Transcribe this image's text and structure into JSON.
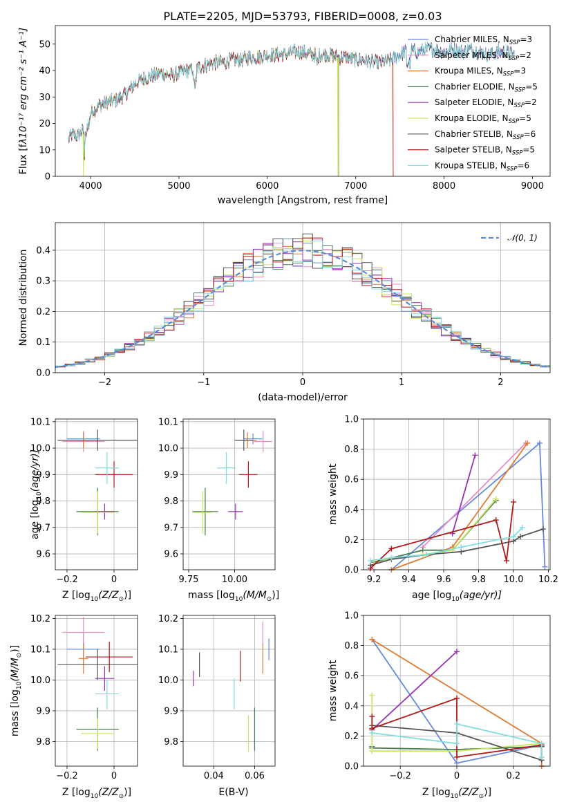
{
  "colors": {
    "Chabrier MILES": "#6688dd",
    "Salpeter MILES": "#e88cc8",
    "Kroupa MILES": "#e07a30",
    "Chabrier ELODIE": "#4a7a52",
    "Salpeter ELODIE": "#9b30b8",
    "Kroupa ELODIE": "#c8e860",
    "Chabrier STELIB": "#555555",
    "Salpeter STELIB": "#b01818",
    "Kroupa STELIB": "#80dde0"
  },
  "chart_data": [
    {
      "type": "line",
      "title": "PLATE=2205, MJD=53793, FIBERID=0008, z=0.03",
      "xlabel": "wavelength [Angstrom, rest frame]",
      "ylabel": "Flux [f",
      "ylabel_math": "λ10⁻¹⁷ erg cm⁻² s⁻¹ A⁻¹]",
      "xlim": [
        3600,
        9200
      ],
      "ylim": [
        0,
        57
      ],
      "xticks": [
        4000,
        5000,
        6000,
        7000,
        8000,
        9000
      ],
      "yticks": [
        0,
        10,
        20,
        30,
        40,
        50
      ],
      "grid": false,
      "legend_position": "upper right",
      "spectrum_envelope": {
        "x": [
          3750,
          3800,
          3850,
          3900,
          3950,
          4000,
          4100,
          4200,
          4300,
          4400,
          4500,
          4600,
          4700,
          4800,
          4900,
          5000,
          5100,
          5200,
          5300,
          5400,
          5500,
          5600,
          5700,
          5800,
          5900,
          6000,
          6100,
          6200,
          6300,
          6400,
          6500,
          6600,
          6700,
          6800,
          6900,
          7000,
          7100,
          7200,
          7300,
          7400,
          7500,
          7600,
          7700,
          7800,
          7900,
          8000,
          8100,
          8200,
          8300,
          8400,
          8500,
          8600,
          8700,
          8800
        ],
        "y": [
          14,
          16,
          15,
          17,
          16,
          24,
          27,
          28,
          29,
          31,
          35,
          37,
          38,
          39,
          38,
          39,
          40,
          41,
          42,
          43,
          43,
          44,
          44,
          45,
          45,
          46,
          46,
          46,
          47,
          47,
          46,
          46,
          46,
          45,
          45,
          44,
          44,
          43,
          43,
          44,
          46,
          48,
          47,
          48,
          48,
          47,
          48,
          47,
          48,
          47,
          46,
          47,
          47,
          46
        ]
      },
      "series": [
        {
          "name": "Chabrier MILES, N",
          "nssp": "=3"
        },
        {
          "name": "Salpeter MILES, N",
          "nssp": "=2"
        },
        {
          "name": "Kroupa MILES, N",
          "nssp": "=3"
        },
        {
          "name": "Chabrier ELODIE, N",
          "nssp": "=5"
        },
        {
          "name": "Salpeter ELODIE, N",
          "nssp": "=2"
        },
        {
          "name": "Kroupa ELODIE, N",
          "nssp": "=5"
        },
        {
          "name": "Chabrier STELIB, N",
          "nssp": "=6"
        },
        {
          "name": "Salpeter STELIB, N",
          "nssp": "=5"
        },
        {
          "name": "Kroupa STELIB, N",
          "nssp": "=6"
        }
      ],
      "nssp_sub": "SSP",
      "dropouts": [
        {
          "x": 3920,
          "series": "Kroupa ELODIE"
        },
        {
          "x": 6800,
          "series": "Kroupa ELODIE"
        },
        {
          "x": 7420,
          "series": "Kroupa MILES"
        }
      ]
    },
    {
      "type": "histogram",
      "xlabel": "(data-model)/error",
      "ylabel": "Normed distribution",
      "xlim": [
        -2.5,
        2.5
      ],
      "ylim": [
        0,
        0.49
      ],
      "xticks": [
        -2,
        -1,
        0,
        1,
        2
      ],
      "yticks": [
        0.0,
        0.1,
        0.2,
        0.3,
        0.4
      ],
      "grid": true,
      "legend": "𝒩(0, 1)",
      "legend_position": "upper right",
      "bin_width": 0.1
    },
    {
      "type": "errorbar",
      "xlabel": "Z [log",
      "xlabel_tail": "(Z/Z",
      "ylabel": "age  [log",
      "ylabel_tail": "(age/yr)]",
      "xlim": [
        -0.25,
        0.1
      ],
      "ylim": [
        9.54,
        10.11
      ],
      "xticks": [
        -0.2,
        0.0
      ],
      "yticks": [
        9.6,
        9.7,
        9.8,
        9.9,
        10.0,
        10.1
      ],
      "grid": true,
      "points": [
        {
          "series": "Chabrier MILES",
          "x": -0.13,
          "y": 10.035,
          "xerr": 0.07,
          "yerr": 0.02
        },
        {
          "series": "Salpeter MILES",
          "x": -0.13,
          "y": 10.025,
          "xerr": 0.09,
          "yerr": 0.04
        },
        {
          "series": "Kroupa MILES",
          "x": -0.13,
          "y": 10.03,
          "xerr": 0.02,
          "yerr": 0.03
        },
        {
          "series": "Chabrier ELODIE",
          "x": -0.07,
          "y": 9.76,
          "xerr": 0.09,
          "yerr": 0.09
        },
        {
          "series": "Salpeter ELODIE",
          "x": -0.04,
          "y": 9.76,
          "xerr": 0.04,
          "yerr": 0.03
        },
        {
          "series": "Kroupa ELODIE",
          "x": -0.07,
          "y": 9.757,
          "xerr": 0.07,
          "yerr": 0.08
        },
        {
          "series": "Chabrier STELIB",
          "x": -0.07,
          "y": 10.03,
          "xerr": 0.17,
          "yerr": 0.04
        },
        {
          "series": "Salpeter STELIB",
          "x": 0.0,
          "y": 9.9,
          "xerr": 0.08,
          "yerr": 0.05
        },
        {
          "series": "Kroupa STELIB",
          "x": -0.03,
          "y": 9.925,
          "xerr": 0.05,
          "yerr": 0.06
        }
      ]
    },
    {
      "type": "errorbar",
      "xlabel": "mass [log",
      "xlabel_tail": "(M/M",
      "ylabel": "",
      "xlim": [
        9.72,
        10.22
      ],
      "ylim": [
        9.54,
        10.11
      ],
      "xticks": [
        9.75,
        10.0
      ],
      "yticks": [
        9.6,
        9.7,
        9.8,
        9.9,
        10.0,
        10.1
      ],
      "grid": true,
      "points": [
        {
          "series": "Chabrier MILES",
          "x": 10.1,
          "y": 10.035,
          "xerr": 0.05,
          "yerr": 0.02
        },
        {
          "series": "Salpeter MILES",
          "x": 10.155,
          "y": 10.025,
          "xerr": 0.05,
          "yerr": 0.04
        },
        {
          "series": "Kroupa MILES",
          "x": 10.07,
          "y": 10.03,
          "xerr": 0.05,
          "yerr": 0.03
        },
        {
          "series": "Chabrier ELODIE",
          "x": 9.84,
          "y": 9.76,
          "xerr": 0.07,
          "yerr": 0.09
        },
        {
          "series": "Salpeter ELODIE",
          "x": 10.005,
          "y": 9.76,
          "xerr": 0.04,
          "yerr": 0.03
        },
        {
          "series": "Kroupa ELODIE",
          "x": 9.826,
          "y": 9.757,
          "xerr": 0.05,
          "yerr": 0.08
        },
        {
          "series": "Chabrier STELIB",
          "x": 10.05,
          "y": 10.03,
          "xerr": 0.05,
          "yerr": 0.04
        },
        {
          "series": "Salpeter STELIB",
          "x": 10.075,
          "y": 9.9,
          "xerr": 0.05,
          "yerr": 0.05
        },
        {
          "series": "Kroupa STELIB",
          "x": 9.955,
          "y": 9.925,
          "xerr": 0.05,
          "yerr": 0.06
        }
      ]
    },
    {
      "type": "line",
      "xlabel": "age  [log",
      "xlabel_tail": "(age/yr)]",
      "ylabel": "mass weight",
      "xlim": [
        9.14,
        10.21
      ],
      "ylim": [
        0,
        1.0
      ],
      "xticks": [
        9.2,
        9.4,
        9.6,
        9.8,
        10.0,
        10.2
      ],
      "yticks": [
        0.0,
        0.2,
        0.4,
        0.6,
        0.8,
        1.0
      ],
      "grid": true,
      "series": [
        {
          "name": "Chabrier MILES",
          "x": [
            9.3,
            10.15,
            10.18
          ],
          "y": [
            0.0,
            0.84,
            0.02
          ]
        },
        {
          "name": "Salpeter MILES",
          "x": [
            9.48,
            10.07
          ],
          "y": [
            0.15,
            0.84
          ]
        },
        {
          "name": "Kroupa MILES",
          "x": [
            9.3,
            9.65,
            10.08
          ],
          "y": [
            0.0,
            0.15,
            0.84
          ]
        },
        {
          "name": "Chabrier ELODIE",
          "x": [
            9.2,
            9.48,
            9.65,
            9.9
          ],
          "y": [
            0.05,
            0.13,
            0.13,
            0.46
          ]
        },
        {
          "name": "Salpeter ELODIE",
          "x": [
            9.65,
            9.78
          ],
          "y": [
            0.24,
            0.76
          ]
        },
        {
          "name": "Kroupa ELODIE",
          "x": [
            9.2,
            9.48,
            9.65,
            9.9
          ],
          "y": [
            0.06,
            0.1,
            0.13,
            0.47
          ]
        },
        {
          "name": "Chabrier STELIB",
          "x": [
            9.18,
            9.3,
            9.5,
            9.7,
            10.0,
            10.04,
            10.17
          ],
          "y": [
            0.03,
            0.07,
            0.1,
            0.12,
            0.19,
            0.22,
            0.27
          ]
        },
        {
          "name": "Salpeter STELIB",
          "x": [
            9.18,
            9.3,
            9.9,
            9.96,
            10.0
          ],
          "y": [
            0.01,
            0.14,
            0.33,
            0.06,
            0.45
          ]
        },
        {
          "name": "Kroupa STELIB",
          "x": [
            9.18,
            9.3,
            9.5,
            9.7,
            10.0,
            10.05
          ],
          "y": [
            0.06,
            0.08,
            0.1,
            0.15,
            0.22,
            0.28
          ]
        }
      ]
    },
    {
      "type": "errorbar",
      "xlabel": "Z [log",
      "xlabel_tail": "(Z/Z",
      "ylabel": "mass [log",
      "ylabel_tail": "(M/M",
      "xlim": [
        -0.25,
        0.1
      ],
      "ylim": [
        9.72,
        10.21
      ],
      "xticks": [
        -0.2,
        0.0
      ],
      "yticks": [
        9.8,
        9.9,
        10.0,
        10.1,
        10.2
      ],
      "grid": true,
      "points": [
        {
          "series": "Chabrier MILES",
          "x": -0.13,
          "y": 10.1,
          "xerr": 0.07,
          "yerr": 0.05
        },
        {
          "series": "Salpeter MILES",
          "x": -0.13,
          "y": 10.155,
          "xerr": 0.09,
          "yerr": 0.05
        },
        {
          "series": "Kroupa MILES",
          "x": -0.13,
          "y": 10.07,
          "xerr": 0.02,
          "yerr": 0.05
        },
        {
          "series": "Chabrier ELODIE",
          "x": -0.07,
          "y": 9.84,
          "xerr": 0.09,
          "yerr": 0.07
        },
        {
          "series": "Salpeter ELODIE",
          "x": -0.04,
          "y": 10.005,
          "xerr": 0.04,
          "yerr": 0.04
        },
        {
          "series": "Kroupa ELODIE",
          "x": -0.07,
          "y": 9.826,
          "xerr": 0.07,
          "yerr": 0.05
        },
        {
          "series": "Chabrier STELIB",
          "x": -0.07,
          "y": 10.05,
          "xerr": 0.17,
          "yerr": 0.05
        },
        {
          "series": "Salpeter STELIB",
          "x": -0.02,
          "y": 10.075,
          "xerr": 0.1,
          "yerr": 0.05
        },
        {
          "series": "Kroupa STELIB",
          "x": -0.03,
          "y": 9.955,
          "xerr": 0.05,
          "yerr": 0.05
        }
      ]
    },
    {
      "type": "errorbar",
      "xlabel": "E(B-V)",
      "ylabel": "",
      "xlim": [
        0.025,
        0.07
      ],
      "ylim": [
        9.72,
        10.21
      ],
      "xticks": [
        0.04,
        0.06
      ],
      "yticks": [
        9.8,
        9.9,
        10.0,
        10.1,
        10.2
      ],
      "grid": true,
      "points": [
        {
          "series": "Chabrier MILES",
          "x": 0.067,
          "y": 10.1,
          "xerr": 0.0,
          "yerr": 0.035
        },
        {
          "series": "Salpeter MILES",
          "x": 0.064,
          "y": 10.155,
          "xerr": 0.0,
          "yerr": 0.035
        },
        {
          "series": "Kroupa MILES",
          "x": 0.064,
          "y": 10.07,
          "xerr": 0.0,
          "yerr": 0.05
        },
        {
          "series": "Chabrier ELODIE",
          "x": 0.06,
          "y": 9.84,
          "xerr": 0.0,
          "yerr": 0.07
        },
        {
          "series": "Salpeter ELODIE",
          "x": 0.03,
          "y": 10.005,
          "xerr": 0.0,
          "yerr": 0.025
        },
        {
          "series": "Kroupa ELODIE",
          "x": 0.057,
          "y": 9.826,
          "xerr": 0.0,
          "yerr": 0.06
        },
        {
          "series": "Chabrier STELIB",
          "x": 0.033,
          "y": 10.05,
          "xerr": 0.0,
          "yerr": 0.04
        },
        {
          "series": "Salpeter STELIB",
          "x": 0.053,
          "y": 10.045,
          "xerr": 0.0,
          "yerr": 0.05
        },
        {
          "series": "Kroupa STELIB",
          "x": 0.05,
          "y": 9.955,
          "xerr": 0.0,
          "yerr": 0.05
        }
      ]
    },
    {
      "type": "line",
      "xlabel": "Z [log",
      "xlabel_tail": "(Z/Z",
      "ylabel": "mass weight",
      "xlim": [
        -0.33,
        0.33
      ],
      "ylim": [
        0,
        1.0
      ],
      "xticks": [
        -0.2,
        0.0,
        0.2
      ],
      "yticks": [
        0.0,
        0.2,
        0.4,
        0.6,
        0.8,
        1.0
      ],
      "grid": true,
      "series": [
        {
          "name": "Chabrier MILES",
          "x": [
            -0.3,
            0.0,
            0.3
          ],
          "y": [
            0.84,
            0.02,
            0.14
          ]
        },
        {
          "name": "Salpeter MILES",
          "x": [
            0.3,
            0.3
          ],
          "y": [
            0.15,
            0.0
          ]
        },
        {
          "name": "Kroupa MILES",
          "x": [
            -0.3,
            0.3,
            0.3
          ],
          "y": [
            0.84,
            0.15,
            0.0
          ]
        },
        {
          "name": "Chabrier ELODIE",
          "x": [
            -0.3,
            -0.3,
            0.0,
            0.3
          ],
          "y": [
            0.13,
            0.12,
            0.11,
            0.13
          ]
        },
        {
          "name": "Salpeter ELODIE",
          "x": [
            -0.3,
            0.0
          ],
          "y": [
            0.24,
            0.76
          ]
        },
        {
          "name": "Kroupa ELODIE",
          "x": [
            -0.3,
            -0.3,
            0.0,
            0.3
          ],
          "y": [
            0.47,
            0.1,
            0.1,
            0.15
          ]
        },
        {
          "name": "Chabrier STELIB",
          "x": [
            -0.3,
            0.0,
            0.3,
            0.3
          ],
          "y": [
            0.27,
            0.22,
            0.04,
            0.13
          ]
        },
        {
          "name": "Salpeter STELIB",
          "x": [
            -0.3,
            -0.3,
            0.0,
            0.0,
            0.3,
            0.3
          ],
          "y": [
            0.33,
            0.25,
            0.45,
            0.06,
            0.14,
            0.14
          ]
        },
        {
          "name": "Kroupa STELIB",
          "x": [
            -0.3,
            0.0,
            0.0,
            0.3,
            0.3
          ],
          "y": [
            0.22,
            0.15,
            0.28,
            0.15,
            0.06
          ]
        }
      ]
    }
  ]
}
